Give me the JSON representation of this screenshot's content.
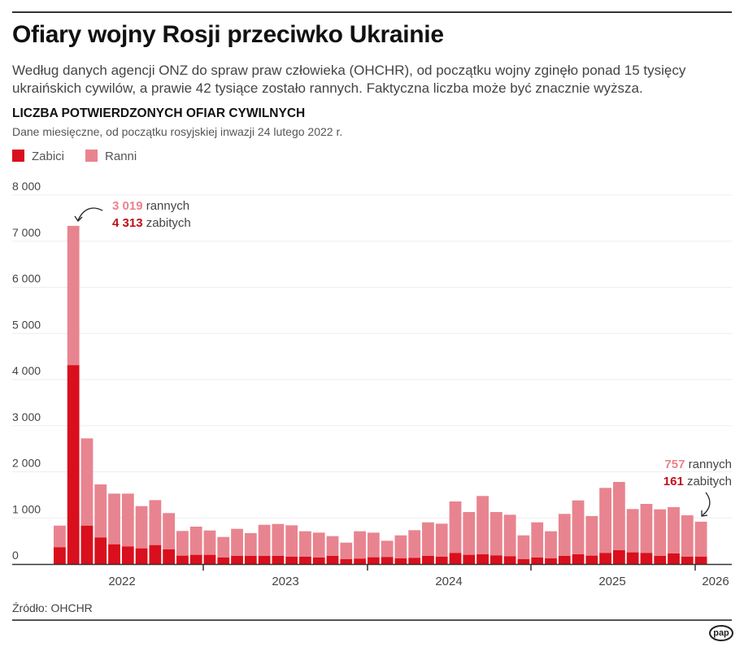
{
  "title": "Ofiary wojny Rosji przeciwko Ukrainie",
  "lead": "Według danych agencji ONZ do spraw praw człowieka (OHCHR), od początku wojny zginęło ponad 15 tysięcy ukraińskich cywilów, a prawie 42 tysiące zostało rannych. Faktyczna liczba może być znacznie wyższa.",
  "source": "Źródło: OHCHR",
  "logo": "pap",
  "colors": {
    "killed": "#d90f1d",
    "wounded": "#e8848f"
  },
  "chart_data": {
    "type": "bar",
    "stacked": true,
    "title": "LICZBA POTWIERDZONYCH OFIAR CYWILNYCH",
    "subtitle": "Dane miesięczne, od początku rosyjskiej inwazji 24 lutego 2022 r.",
    "legend_position": "top-left",
    "grid": true,
    "ylim": [
      0,
      8000
    ],
    "yticks": [
      "0",
      "1 000",
      "2 000",
      "3 000",
      "4 000",
      "5 000",
      "6 000",
      "7 000",
      "8 000"
    ],
    "xticks": [
      "2022",
      "2023",
      "2024",
      "2025",
      "2026"
    ],
    "categories": [
      "2022-02",
      "2022-03",
      "2022-04",
      "2022-05",
      "2022-06",
      "2022-07",
      "2022-08",
      "2022-09",
      "2022-10",
      "2022-11",
      "2022-12",
      "2023-01",
      "2023-02",
      "2023-03",
      "2023-04",
      "2023-05",
      "2023-06",
      "2023-07",
      "2023-08",
      "2023-09",
      "2023-10",
      "2023-11",
      "2023-12",
      "2024-01",
      "2024-02",
      "2024-03",
      "2024-04",
      "2024-05",
      "2024-06",
      "2024-07",
      "2024-08",
      "2024-09",
      "2024-10",
      "2024-11",
      "2024-12",
      "2025-01",
      "2025-02",
      "2025-03",
      "2025-04",
      "2025-05",
      "2025-06",
      "2025-07",
      "2025-08",
      "2025-09",
      "2025-10",
      "2025-11",
      "2025-12",
      "2026-01"
    ],
    "series": [
      {
        "name": "Zabici",
        "values": [
          365,
          4313,
          833,
          576,
          428,
          382,
          340,
          411,
          317,
          182,
          200,
          200,
          141,
          176,
          176,
          176,
          176,
          159,
          159,
          141,
          176,
          106,
          118,
          147,
          153,
          123,
          135,
          176,
          159,
          241,
          200,
          211,
          188,
          170,
          106,
          141,
          123,
          176,
          211,
          182,
          241,
          300,
          253,
          241,
          176,
          229,
          159,
          161
        ]
      },
      {
        "name": "Ranni",
        "values": [
          468,
          3019,
          1892,
          1151,
          1099,
          1145,
          916,
          975,
          788,
          535,
          611,
          528,
          446,
          587,
          494,
          675,
          693,
          681,
          552,
          540,
          429,
          358,
          593,
          534,
          352,
          499,
          599,
          728,
          716,
          1116,
          928,
          1264,
          940,
          899,
          516,
          763,
          588,
          911,
          1169,
          858,
          1410,
          1480,
          940,
          1063,
          1010,
          1004,
          898,
          757
        ]
      }
    ],
    "annotations": [
      {
        "wounded_value": "3 019",
        "wounded_text": "rannych",
        "killed_value": "4 313",
        "killed_text": "zabitych"
      },
      {
        "wounded_value": "757",
        "wounded_text": "rannych",
        "killed_value": "161",
        "killed_text": "zabitych"
      }
    ]
  }
}
